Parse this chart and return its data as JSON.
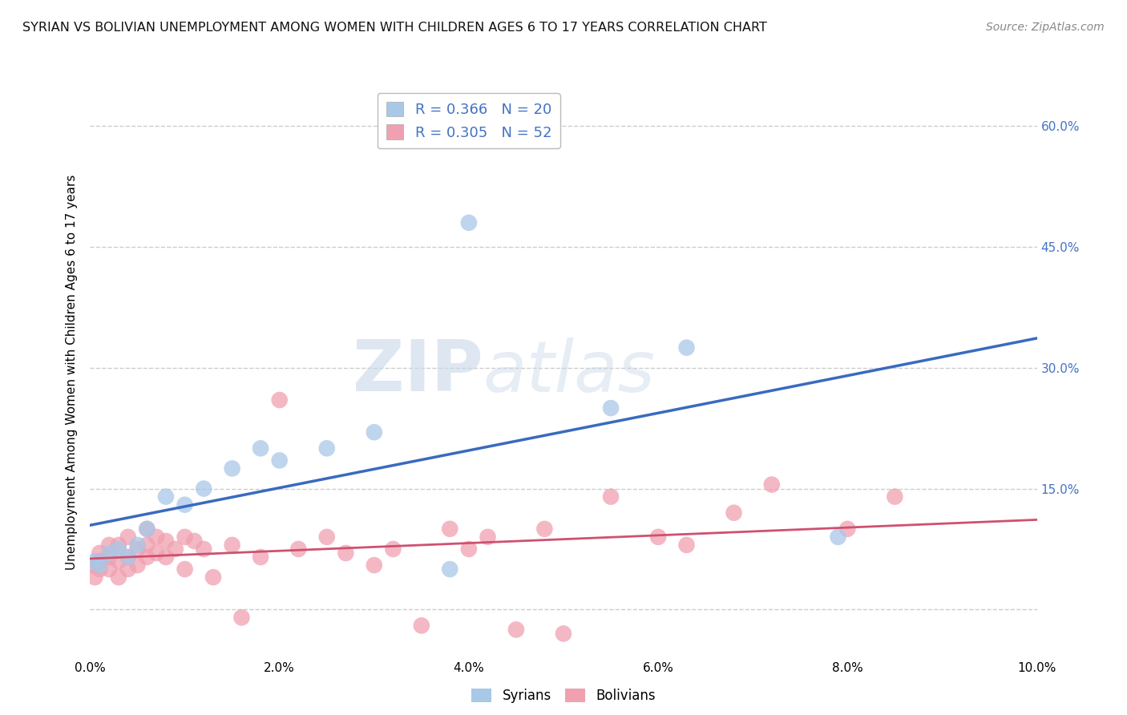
{
  "title": "SYRIAN VS BOLIVIAN UNEMPLOYMENT AMONG WOMEN WITH CHILDREN AGES 6 TO 17 YEARS CORRELATION CHART",
  "source": "Source: ZipAtlas.com",
  "ylabel": "Unemployment Among Women with Children Ages 6 to 17 years",
  "xlim": [
    0.0,
    0.1
  ],
  "ylim": [
    -0.06,
    0.65
  ],
  "xtick_labels": [
    "0.0%",
    "2.0%",
    "4.0%",
    "6.0%",
    "8.0%",
    "10.0%"
  ],
  "xtick_vals": [
    0.0,
    0.02,
    0.04,
    0.06,
    0.08,
    0.1
  ],
  "ytick_vals": [
    0.0,
    0.15,
    0.3,
    0.45,
    0.6
  ],
  "ytick_labels_right": [
    "15.0%",
    "30.0%",
    "45.0%",
    "60.0%"
  ],
  "ytick_vals_right": [
    0.15,
    0.3,
    0.45,
    0.6
  ],
  "syrian_color": "#a8c8e8",
  "bolivian_color": "#f0a0b0",
  "syrian_line_color": "#3a6abf",
  "bolivian_line_color": "#d05070",
  "right_axis_color": "#4472c4",
  "legend_text_color": "#4472c4",
  "syrian_R": 0.366,
  "syrian_N": 20,
  "bolivian_R": 0.305,
  "bolivian_N": 52,
  "background_color": "#ffffff",
  "watermark_zip": "ZIP",
  "watermark_atlas": "atlas",
  "grid_color": "#cccccc",
  "grid_style": "--",
  "syrian_x": [
    0.0005,
    0.001,
    0.002,
    0.003,
    0.004,
    0.005,
    0.006,
    0.008,
    0.01,
    0.012,
    0.015,
    0.018,
    0.02,
    0.025,
    0.03,
    0.038,
    0.04,
    0.055,
    0.063,
    0.079
  ],
  "syrian_y": [
    0.06,
    0.055,
    0.07,
    0.075,
    0.065,
    0.08,
    0.1,
    0.14,
    0.13,
    0.15,
    0.175,
    0.2,
    0.185,
    0.2,
    0.22,
    0.05,
    0.48,
    0.25,
    0.325,
    0.09
  ],
  "bolivian_x": [
    0.0003,
    0.0005,
    0.001,
    0.001,
    0.001,
    0.002,
    0.002,
    0.002,
    0.003,
    0.003,
    0.003,
    0.004,
    0.004,
    0.004,
    0.005,
    0.005,
    0.006,
    0.006,
    0.006,
    0.007,
    0.007,
    0.008,
    0.008,
    0.009,
    0.01,
    0.01,
    0.011,
    0.012,
    0.013,
    0.015,
    0.016,
    0.018,
    0.02,
    0.022,
    0.025,
    0.027,
    0.03,
    0.032,
    0.035,
    0.038,
    0.04,
    0.042,
    0.045,
    0.048,
    0.05,
    0.055,
    0.06,
    0.063,
    0.068,
    0.072,
    0.08,
    0.085
  ],
  "bolivian_y": [
    0.055,
    0.04,
    0.06,
    0.05,
    0.07,
    0.05,
    0.065,
    0.08,
    0.04,
    0.06,
    0.08,
    0.05,
    0.065,
    0.09,
    0.055,
    0.075,
    0.065,
    0.08,
    0.1,
    0.07,
    0.09,
    0.065,
    0.085,
    0.075,
    0.05,
    0.09,
    0.085,
    0.075,
    0.04,
    0.08,
    -0.01,
    0.065,
    0.26,
    0.075,
    0.09,
    0.07,
    0.055,
    0.075,
    -0.02,
    0.1,
    0.075,
    0.09,
    -0.025,
    0.1,
    -0.03,
    0.14,
    0.09,
    0.08,
    0.12,
    0.155,
    0.1,
    0.14
  ]
}
